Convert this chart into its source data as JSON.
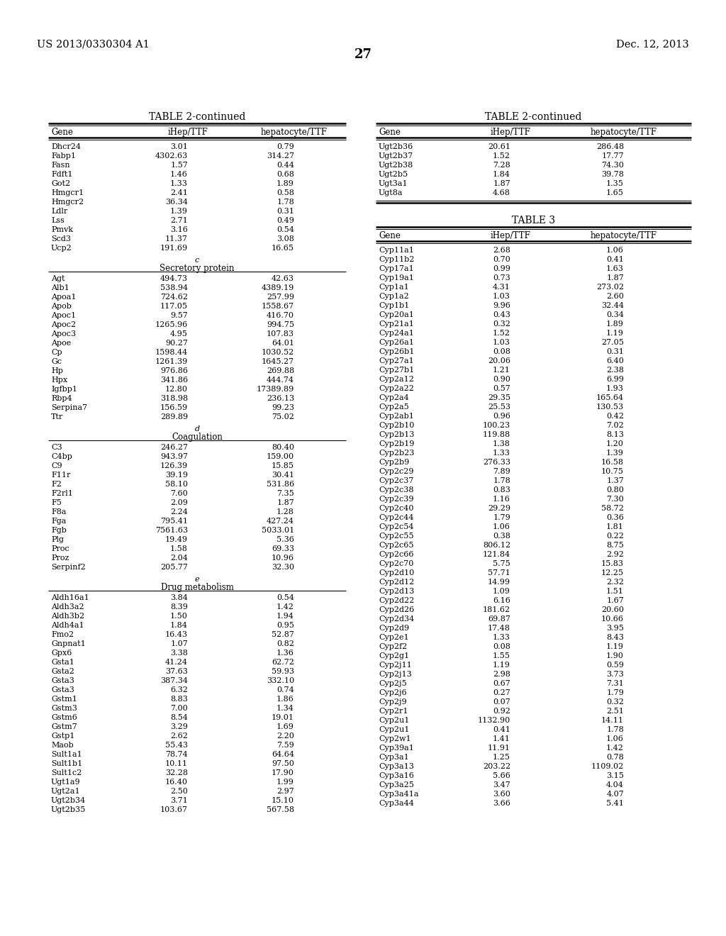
{
  "patent_number": "US 2013/0330304 A1",
  "date": "Dec. 12, 2013",
  "page_number": "27",
  "left_table_title": "TABLE 2-continued",
  "right_table_title": "TABLE 2-continued",
  "right_table3_title": "TABLE 3",
  "col_headers": [
    "Gene",
    "iHep/TTF",
    "hepatocyte/TTF"
  ],
  "left_section0": {
    "rows": [
      [
        "Dhcr24",
        "3.01",
        "0.79"
      ],
      [
        "Fabp1",
        "4302.63",
        "314.27"
      ],
      [
        "Fasn",
        "1.57",
        "0.44"
      ],
      [
        "Fdft1",
        "1.46",
        "0.68"
      ],
      [
        "Got2",
        "1.33",
        "1.89"
      ],
      [
        "Hmgcr1",
        "2.41",
        "0.58"
      ],
      [
        "Hmgcr2",
        "36.34",
        "1.78"
      ],
      [
        "Ldlr",
        "1.39",
        "0.31"
      ],
      [
        "Lss",
        "2.71",
        "0.49"
      ],
      [
        "Pmvk",
        "3.16",
        "0.54"
      ],
      [
        "Scd3",
        "11.37",
        "3.08"
      ],
      [
        "Ucp2",
        "191.69",
        "16.65"
      ]
    ]
  },
  "left_section1_label": "c",
  "left_section1_name": "Secretory protein",
  "left_section1": {
    "rows": [
      [
        "Agt",
        "494.73",
        "42.63"
      ],
      [
        "Alb1",
        "538.94",
        "4389.19"
      ],
      [
        "Apoa1",
        "724.62",
        "257.99"
      ],
      [
        "Apob",
        "117.05",
        "1558.67"
      ],
      [
        "Apoc1",
        "9.57",
        "416.70"
      ],
      [
        "Apoc2",
        "1265.96",
        "994.75"
      ],
      [
        "Apoc3",
        "4.95",
        "107.83"
      ],
      [
        "Apoe",
        "90.27",
        "64.01"
      ],
      [
        "Cp",
        "1598.44",
        "1030.52"
      ],
      [
        "Gc",
        "1261.39",
        "1645.27"
      ],
      [
        "Hp",
        "976.86",
        "269.88"
      ],
      [
        "Hpx",
        "341.86",
        "444.74"
      ],
      [
        "Igfbp1",
        "12.80",
        "17389.89"
      ],
      [
        "Rbp4",
        "318.98",
        "236.13"
      ],
      [
        "Serpina7",
        "156.59",
        "99.23"
      ],
      [
        "Ttr",
        "289.89",
        "75.02"
      ]
    ]
  },
  "left_section2_label": "d",
  "left_section2_name": "Coagulation",
  "left_section2": {
    "rows": [
      [
        "C3",
        "246.27",
        "80.40"
      ],
      [
        "C4bp",
        "943.97",
        "159.00"
      ],
      [
        "C9",
        "126.39",
        "15.85"
      ],
      [
        "F11r",
        "39.19",
        "30.41"
      ],
      [
        "F2",
        "58.10",
        "531.86"
      ],
      [
        "F2rl1",
        "7.60",
        "7.35"
      ],
      [
        "F5",
        "2.09",
        "1.87"
      ],
      [
        "F8a",
        "2.24",
        "1.28"
      ],
      [
        "Fga",
        "795.41",
        "427.24"
      ],
      [
        "Fgb",
        "7561.63",
        "5033.01"
      ],
      [
        "Plg",
        "19.49",
        "5.36"
      ],
      [
        "Proc",
        "1.58",
        "69.33"
      ],
      [
        "Proz",
        "2.04",
        "10.96"
      ],
      [
        "Serpinf2",
        "205.77",
        "32.30"
      ]
    ]
  },
  "left_section3_label": "e",
  "left_section3_name": "Drug metabolism",
  "left_section3": {
    "rows": [
      [
        "Aldh16a1",
        "3.84",
        "0.54"
      ],
      [
        "Aldh3a2",
        "8.39",
        "1.42"
      ],
      [
        "Aldh3b2",
        "1.50",
        "1.94"
      ],
      [
        "Aldh4a1",
        "1.84",
        "0.95"
      ],
      [
        "Fmo2",
        "16.43",
        "52.87"
      ],
      [
        "Gnpnat1",
        "1.07",
        "0.82"
      ],
      [
        "Gpx6",
        "3.38",
        "1.36"
      ],
      [
        "Gsta1",
        "41.24",
        "62.72"
      ],
      [
        "Gsta2",
        "37.63",
        "59.93"
      ],
      [
        "Gsta3",
        "387.34",
        "332.10"
      ],
      [
        "Gsta3",
        "6.32",
        "0.74"
      ],
      [
        "Gstm1",
        "8.83",
        "1.86"
      ],
      [
        "Gstm3",
        "7.00",
        "1.34"
      ],
      [
        "Gstm6",
        "8.54",
        "19.01"
      ],
      [
        "Gstm7",
        "3.29",
        "1.69"
      ],
      [
        "Gstp1",
        "2.62",
        "2.20"
      ],
      [
        "Maob",
        "55.43",
        "7.59"
      ],
      [
        "Sult1a1",
        "78.74",
        "64.64"
      ],
      [
        "Sult1b1",
        "10.11",
        "97.50"
      ],
      [
        "Sult1c2",
        "32.28",
        "17.90"
      ],
      [
        "Ugt1a9",
        "16.40",
        "1.99"
      ],
      [
        "Ugt2a1",
        "2.50",
        "2.97"
      ],
      [
        "Ugt2b34",
        "3.71",
        "15.10"
      ],
      [
        "Ugt2b35",
        "103.67",
        "567.58"
      ]
    ]
  },
  "right_t2_rows": [
    [
      "Ugt2b36",
      "20.61",
      "286.48"
    ],
    [
      "Ugt2b37",
      "1.52",
      "17.77"
    ],
    [
      "Ugt2b38",
      "7.28",
      "74.30"
    ],
    [
      "Ugt2b5",
      "1.84",
      "39.78"
    ],
    [
      "Ugt3a1",
      "1.87",
      "1.35"
    ],
    [
      "Ugt8a",
      "4.68",
      "1.65"
    ]
  ],
  "right_t3_rows": [
    [
      "Cyp11a1",
      "2.68",
      "1.06"
    ],
    [
      "Cyp11b2",
      "0.70",
      "0.41"
    ],
    [
      "Cyp17a1",
      "0.99",
      "1.63"
    ],
    [
      "Cyp19a1",
      "0.73",
      "1.87"
    ],
    [
      "Cyp1a1",
      "4.31",
      "273.02"
    ],
    [
      "Cyp1a2",
      "1.03",
      "2.60"
    ],
    [
      "Cyp1b1",
      "9.96",
      "32.44"
    ],
    [
      "Cyp20a1",
      "0.43",
      "0.34"
    ],
    [
      "Cyp21a1",
      "0.32",
      "1.89"
    ],
    [
      "Cyp24a1",
      "1.52",
      "1.19"
    ],
    [
      "Cyp26a1",
      "1.03",
      "27.05"
    ],
    [
      "Cyp26b1",
      "0.08",
      "0.31"
    ],
    [
      "Cyp27a1",
      "20.06",
      "6.40"
    ],
    [
      "Cyp27b1",
      "1.21",
      "2.38"
    ],
    [
      "Cyp2a12",
      "0.90",
      "6.99"
    ],
    [
      "Cyp2a22",
      "0.57",
      "1.93"
    ],
    [
      "Cyp2a4",
      "29.35",
      "165.64"
    ],
    [
      "Cyp2a5",
      "25.53",
      "130.53"
    ],
    [
      "Cyp2ab1",
      "0.96",
      "0.42"
    ],
    [
      "Cyp2b10",
      "100.23",
      "7.02"
    ],
    [
      "Cyp2b13",
      "119.88",
      "8.13"
    ],
    [
      "Cyp2b19",
      "1.38",
      "1.20"
    ],
    [
      "Cyp2b23",
      "1.33",
      "1.39"
    ],
    [
      "Cyp2b9",
      "276.33",
      "16.58"
    ],
    [
      "Cyp2c29",
      "7.89",
      "10.75"
    ],
    [
      "Cyp2c37",
      "1.78",
      "1.37"
    ],
    [
      "Cyp2c38",
      "0.83",
      "0.80"
    ],
    [
      "Cyp2c39",
      "1.16",
      "7.30"
    ],
    [
      "Cyp2c40",
      "29.29",
      "58.72"
    ],
    [
      "Cyp2c44",
      "1.79",
      "0.36"
    ],
    [
      "Cyp2c54",
      "1.06",
      "1.81"
    ],
    [
      "Cyp2c55",
      "0.38",
      "0.22"
    ],
    [
      "Cyp2c65",
      "806.12",
      "8.75"
    ],
    [
      "Cyp2c66",
      "121.84",
      "2.92"
    ],
    [
      "Cyp2c70",
      "5.75",
      "15.83"
    ],
    [
      "Cyp2d10",
      "57.71",
      "12.25"
    ],
    [
      "Cyp2d12",
      "14.99",
      "2.32"
    ],
    [
      "Cyp2d13",
      "1.09",
      "1.51"
    ],
    [
      "Cyp2d22",
      "6.16",
      "1.67"
    ],
    [
      "Cyp2d26",
      "181.62",
      "20.60"
    ],
    [
      "Cyp2d34",
      "69.87",
      "10.66"
    ],
    [
      "Cyp2d9",
      "17.48",
      "3.95"
    ],
    [
      "Cyp2e1",
      "1.33",
      "8.43"
    ],
    [
      "Cyp2f2",
      "0.08",
      "1.19"
    ],
    [
      "Cyp2g1",
      "1.55",
      "1.90"
    ],
    [
      "Cyp2j11",
      "1.19",
      "0.59"
    ],
    [
      "Cyp2j13",
      "2.98",
      "3.73"
    ],
    [
      "Cyp2j5",
      "0.67",
      "7.31"
    ],
    [
      "Cyp2j6",
      "0.27",
      "1.79"
    ],
    [
      "Cyp2j9",
      "0.07",
      "0.32"
    ],
    [
      "Cyp2r1",
      "0.92",
      "2.51"
    ],
    [
      "Cyp2u1",
      "1132.90",
      "14.11"
    ],
    [
      "Cyp2u1",
      "0.41",
      "1.78"
    ],
    [
      "Cyp2w1",
      "1.41",
      "1.06"
    ],
    [
      "Cyp39a1",
      "11.91",
      "1.42"
    ],
    [
      "Cyp3a1",
      "1.25",
      "0.78"
    ],
    [
      "Cyp3a13",
      "203.22",
      "1109.02"
    ],
    [
      "Cyp3a16",
      "5.66",
      "3.15"
    ],
    [
      "Cyp3a25",
      "3.47",
      "4.04"
    ],
    [
      "Cyp3a41a",
      "3.60",
      "4.07"
    ],
    [
      "Cyp3a44",
      "3.66",
      "5.41"
    ]
  ]
}
